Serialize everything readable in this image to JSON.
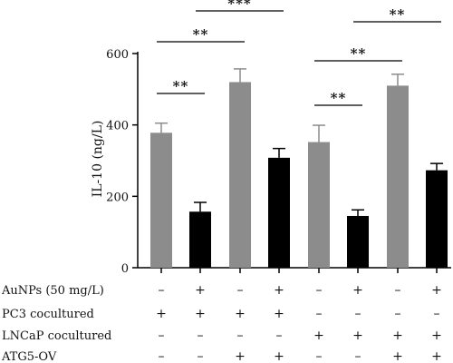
{
  "chart_data": {
    "type": "bar",
    "ylabel": "IL-10 (ng/L)",
    "ylim": [
      0,
      600
    ],
    "yticks": [
      "0",
      "200",
      "400",
      "600"
    ],
    "series": [
      {
        "values": [
          378,
          157,
          520,
          308,
          352,
          145,
          510,
          273
        ],
        "errors": [
          27,
          26,
          37,
          26,
          47,
          17,
          32,
          19
        ],
        "colors": [
          "#8c8c8c",
          "#000000",
          "#8c8c8c",
          "#000000",
          "#8c8c8c",
          "#000000",
          "#8c8c8c",
          "#000000"
        ]
      }
    ],
    "condition_rows": [
      {
        "label": "AuNPs (50 mg/L)",
        "signs": [
          "–",
          "+",
          "–",
          "+",
          "–",
          "+",
          "–",
          "+"
        ]
      },
      {
        "label": "PC3 cocultured",
        "signs": [
          "+",
          "+",
          "+",
          "+",
          "–",
          "–",
          "–",
          "–"
        ]
      },
      {
        "label": "LNCaP cocultured",
        "signs": [
          "–",
          "–",
          "–",
          "–",
          "+",
          "+",
          "+",
          "+"
        ]
      },
      {
        "label": "ATG5-OV",
        "signs": [
          "–",
          "–",
          "+",
          "+",
          "–",
          "–",
          "+",
          "+"
        ]
      }
    ],
    "significance": [
      {
        "from": 0,
        "to": 1,
        "label": "**"
      },
      {
        "from": 0,
        "to": 2,
        "label": "**"
      },
      {
        "from": 1,
        "to": 3,
        "label": "***"
      },
      {
        "from": 4,
        "to": 5,
        "label": "**"
      },
      {
        "from": 4,
        "to": 6,
        "label": "**"
      },
      {
        "from": 5,
        "to": 7,
        "label": "**"
      }
    ]
  }
}
